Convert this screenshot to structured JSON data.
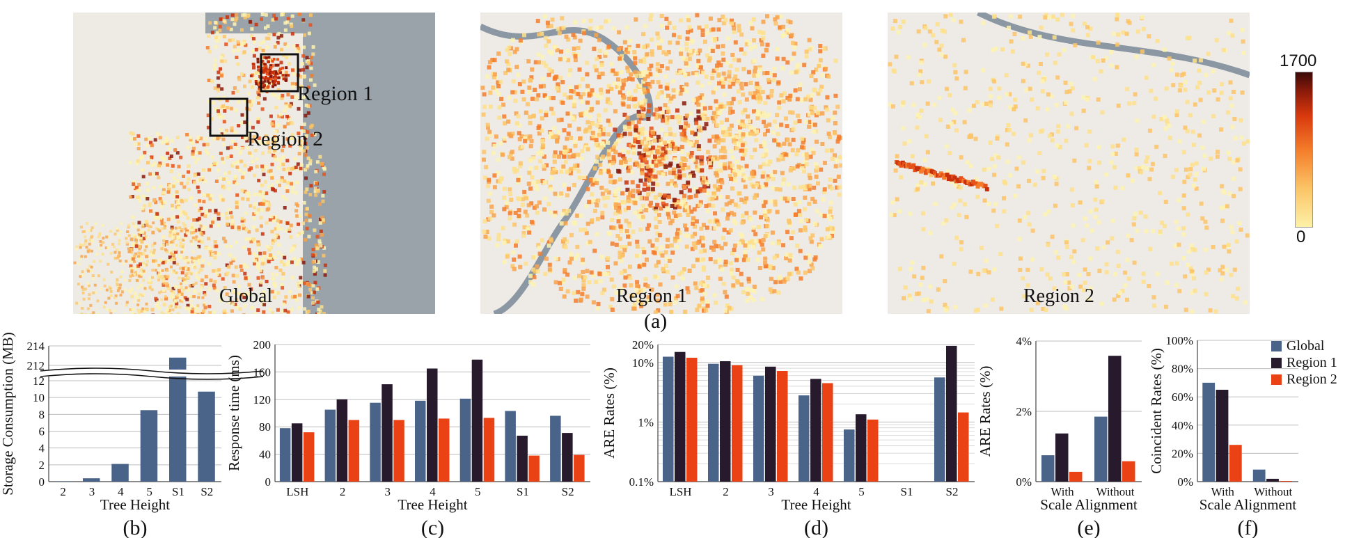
{
  "maps": {
    "global": {
      "caption": "Global",
      "region1_box_label": "Region 1",
      "region2_box_label": "Region 2"
    },
    "region1": {
      "caption": "Region 1"
    },
    "region2": {
      "caption": "Region 2"
    },
    "colorbar": {
      "max": "1700",
      "min": "0"
    },
    "letter": "(a)"
  },
  "colors": {
    "global": "#4a6388",
    "region1": "#261a2c",
    "region2": "#ea4215"
  },
  "chart_data": [
    {
      "id": "b",
      "type": "bar",
      "letter": "(b)",
      "xlabel": "Tree Height",
      "ylabel": "Storage Consumption (MB)",
      "categories": [
        "2",
        "3",
        "4",
        "5",
        "S1",
        "S2"
      ],
      "series": [
        {
          "name": "Global",
          "values": [
            0.05,
            0.4,
            2.1,
            8.5,
            212.8,
            10.7
          ]
        }
      ],
      "axis_break": {
        "lower_ylim": [
          0,
          12
        ],
        "upper_ylim": [
          212,
          214
        ]
      },
      "yticks": [
        "0",
        "2",
        "4",
        "6",
        "8",
        "10",
        "12",
        "212",
        "214"
      ]
    },
    {
      "id": "c",
      "type": "bar",
      "letter": "(c)",
      "xlabel": "Tree Height",
      "ylabel": "Response time (ms)",
      "categories": [
        "LSH",
        "2",
        "3",
        "4",
        "5",
        "S1",
        "S2"
      ],
      "ylim": [
        0,
        200
      ],
      "yticks": [
        "0",
        "40",
        "80",
        "120",
        "160",
        "200"
      ],
      "series": [
        {
          "name": "Global",
          "values": [
            78,
            105,
            115,
            118,
            121,
            103,
            96
          ]
        },
        {
          "name": "Region 1",
          "values": [
            85,
            120,
            142,
            165,
            178,
            67,
            71
          ]
        },
        {
          "name": "Region 2",
          "values": [
            72,
            90,
            90,
            92,
            93,
            38,
            39
          ]
        }
      ]
    },
    {
      "id": "d",
      "type": "bar",
      "letter": "(d)",
      "scale": "log",
      "xlabel": "Tree Height",
      "ylabel": "ARE Rates (%)",
      "categories": [
        "LSH",
        "2",
        "3",
        "4",
        "5",
        "S1",
        "S2"
      ],
      "ylim": [
        0.1,
        20
      ],
      "yticks": [
        "0.1%",
        "1%",
        "10%",
        "20%"
      ],
      "series": [
        {
          "name": "Global",
          "values": [
            12.5,
            9.5,
            6.0,
            2.8,
            0.75,
            null,
            5.6
          ]
        },
        {
          "name": "Region 1",
          "values": [
            15,
            10.5,
            8.5,
            5.3,
            1.35,
            null,
            19
          ]
        },
        {
          "name": "Region 2",
          "values": [
            12,
            9.0,
            7.2,
            4.5,
            1.1,
            null,
            1.45
          ]
        }
      ]
    },
    {
      "id": "e",
      "type": "bar",
      "letter": "(e)",
      "xlabel": "Scale Alignment",
      "ylabel": "ARE Rates (%)",
      "categories": [
        "With",
        "Without"
      ],
      "ylim": [
        0,
        4
      ],
      "yticks": [
        "0%",
        "2%",
        "4%"
      ],
      "series": [
        {
          "name": "Global",
          "values": [
            0.75,
            1.85
          ]
        },
        {
          "name": "Region 1",
          "values": [
            1.37,
            3.58
          ]
        },
        {
          "name": "Region 2",
          "values": [
            0.28,
            0.58
          ]
        }
      ]
    },
    {
      "id": "f",
      "type": "bar",
      "letter": "(f)",
      "xlabel": "Scale Alignment",
      "ylabel": "Coincident Rates (%)",
      "categories": [
        "With",
        "Without"
      ],
      "ylim": [
        0,
        100
      ],
      "yticks": [
        "0%",
        "20%",
        "40%",
        "60%",
        "80%",
        "100%"
      ],
      "legend": {
        "position": "top-right",
        "entries": [
          "Global",
          "Region 1",
          "Region 2"
        ]
      },
      "series": [
        {
          "name": "Global",
          "values": [
            70,
            8.5
          ]
        },
        {
          "name": "Region 1",
          "values": [
            65,
            2
          ]
        },
        {
          "name": "Region 2",
          "values": [
            26,
            0.5
          ]
        }
      ]
    }
  ]
}
